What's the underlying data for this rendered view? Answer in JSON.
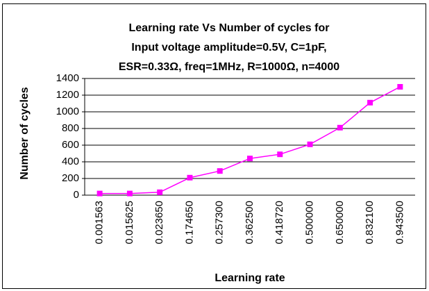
{
  "chart_data": {
    "type": "line",
    "title": [
      "Learning rate Vs Number of cycles for",
      "Input voltage amplitude=0.5V, C=1pF,",
      "ESR=0.33Ω, freq=1MHz, R=1000Ω, n=4000"
    ],
    "x_label": "Learning rate",
    "y_label": "Number of cycles",
    "categories": [
      "0.001563",
      "0.015625",
      "0.023650",
      "0.174650",
      "0.257300",
      "0.362500",
      "0.418720",
      "0.500000",
      "0.650000",
      "0.832100",
      "0.943500"
    ],
    "series": [
      {
        "name": "Number of cycles",
        "color": "#ff00ff",
        "values": [
          20,
          20,
          35,
          210,
          290,
          440,
          490,
          610,
          810,
          1110,
          1300
        ]
      }
    ],
    "ylim": [
      0,
      1400
    ],
    "yticks": [
      0,
      200,
      400,
      600,
      800,
      1000,
      1200,
      1400
    ],
    "grid": true,
    "legend": false
  }
}
